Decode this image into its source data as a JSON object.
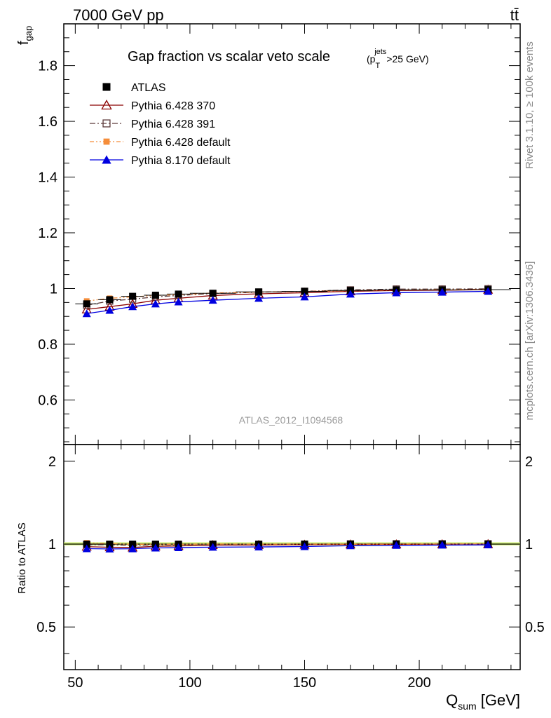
{
  "header": {
    "energy_label": "7000 GeV pp",
    "process_label": "tt̄"
  },
  "side": {
    "rivet_label": "Rivet 3.1.10, ≥ 100k events",
    "ref_label": "mcplots.cern.ch [arXiv:1306.3436]"
  },
  "chart_data": {
    "type": "line",
    "title": "Gap fraction vs scalar veto scale",
    "title_cut": {
      "open": "(p",
      "sup": "jets",
      "sub": "T",
      "close": ">25 GeV)"
    },
    "analysis_label": "ATLAS_2012_I1094568",
    "xlabel": {
      "main": "Q",
      "sub": "sum",
      "unit": " [GeV]"
    },
    "ylabel": {
      "main": "f",
      "sub": "gap"
    },
    "ratio_ylabel": "Ratio to ATLAS",
    "xlim": [
      45,
      244
    ],
    "ylim": [
      0.44,
      1.95
    ],
    "ratio_ylim": [
      0.35,
      2.3
    ],
    "xticks": [
      50,
      100,
      150,
      200
    ],
    "yticks": [
      0.6,
      0.8,
      1.0,
      1.2,
      1.4,
      1.6,
      1.8
    ],
    "ytick_labels": [
      "0.6",
      "0.8",
      "1",
      "1.2",
      "1.4",
      "1.6",
      "1.8"
    ],
    "ratio_yticks": [
      0.5,
      1,
      2
    ],
    "ratio_ytick_labels": [
      "0.5",
      "1",
      "2"
    ],
    "grid": false,
    "legend_position": "top-left",
    "x": [
      55,
      65,
      75,
      85,
      95,
      110,
      130,
      150,
      170,
      190,
      210,
      230
    ],
    "x_edges": [
      50,
      60,
      70,
      80,
      90,
      100,
      120,
      140,
      160,
      180,
      200,
      220,
      240
    ],
    "series": [
      {
        "name": "ATLAS",
        "color": "#000000",
        "marker": "square-filled",
        "line": "none",
        "values": [
          0.945,
          0.96,
          0.972,
          0.976,
          0.98,
          0.983,
          0.988,
          0.99,
          0.993,
          0.995,
          0.995,
          0.996
        ]
      },
      {
        "name": "Pythia 6.428 370",
        "color": "#8b0000",
        "marker": "triangle-open",
        "line": "solid",
        "values": [
          0.925,
          0.935,
          0.945,
          0.958,
          0.965,
          0.975,
          0.981,
          0.985,
          0.99,
          0.993,
          0.994,
          0.996
        ]
      },
      {
        "name": "Pythia 6.428 391",
        "color": "#5c3a3a",
        "marker": "square-open",
        "line": "dashdot",
        "values": [
          0.94,
          0.955,
          0.962,
          0.97,
          0.975,
          0.982,
          0.987,
          0.99,
          0.995,
          0.998,
          0.998,
          0.999
        ]
      },
      {
        "name": "Pythia 6.428 default",
        "color": "#f58d3a",
        "marker": "square-filled-small",
        "line": "dashdotdot",
        "values": [
          0.955,
          0.965,
          0.97,
          0.975,
          0.978,
          0.984,
          0.987,
          0.99,
          0.992,
          0.995,
          0.996,
          0.997
        ]
      },
      {
        "name": "Pythia 8.170 default",
        "color": "#0000e0",
        "marker": "triangle-filled",
        "line": "solid",
        "values": [
          0.91,
          0.922,
          0.935,
          0.945,
          0.952,
          0.958,
          0.965,
          0.97,
          0.98,
          0.985,
          0.987,
          0.99
        ]
      }
    ]
  }
}
